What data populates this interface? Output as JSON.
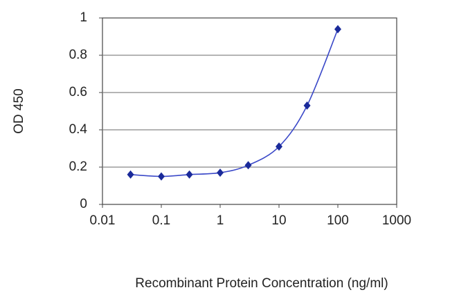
{
  "chart_data": {
    "type": "line",
    "x_label": "Recombinant Protein Concentration (ng/ml)",
    "y_label": "OD 450",
    "x": [
      0.03,
      0.1,
      0.3,
      1,
      3,
      10,
      30,
      100
    ],
    "series": [
      {
        "color": "#1a2a9a",
        "values": [
          0.16,
          0.15,
          0.16,
          0.17,
          0.21,
          0.31,
          0.53,
          0.94
        ]
      }
    ],
    "xscale": "log",
    "xlim": [
      0.01,
      1000
    ],
    "xticks": [
      0.01,
      0.1,
      1,
      10,
      100,
      1000
    ],
    "ylim": [
      0,
      1
    ],
    "yticks": [
      0,
      0.2,
      0.4,
      0.6,
      0.8,
      1
    ],
    "grid": true
  }
}
